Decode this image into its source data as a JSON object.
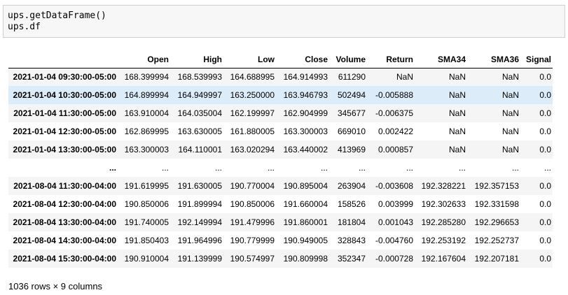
{
  "code": [
    "ups.getDataFrame()",
    "ups.df"
  ],
  "table": {
    "columns": [
      "",
      "Open",
      "High",
      "Low",
      "Close",
      "Volume",
      "Return",
      "SMA34",
      "SMA36",
      "Signal"
    ],
    "rows": [
      [
        "2021-01-04 09:30:00-05:00",
        "168.399994",
        "168.539993",
        "164.688995",
        "164.914993",
        "611290",
        "NaN",
        "NaN",
        "NaN",
        "0.0"
      ],
      [
        "2021-01-04 10:30:00-05:00",
        "164.899994",
        "164.949997",
        "163.250000",
        "163.946793",
        "502494",
        "-0.005888",
        "NaN",
        "NaN",
        "0.0"
      ],
      [
        "2021-01-04 11:30:00-05:00",
        "163.910004",
        "164.035004",
        "162.199997",
        "162.904999",
        "345677",
        "-0.006375",
        "NaN",
        "NaN",
        "0.0"
      ],
      [
        "2021-01-04 12:30:00-05:00",
        "162.869995",
        "163.630005",
        "161.880005",
        "163.300003",
        "669010",
        "0.002422",
        "NaN",
        "NaN",
        "0.0"
      ],
      [
        "2021-01-04 13:30:00-05:00",
        "163.300003",
        "164.110001",
        "163.020294",
        "163.440002",
        "413969",
        "0.000857",
        "NaN",
        "NaN",
        "0.0"
      ],
      [
        "...",
        "...",
        "...",
        "...",
        "...",
        "...",
        "...",
        "...",
        "...",
        "..."
      ],
      [
        "2021-08-04 11:30:00-04:00",
        "191.619995",
        "191.630005",
        "190.770004",
        "190.895004",
        "263904",
        "-0.003608",
        "192.328221",
        "192.357153",
        "0.0"
      ],
      [
        "2021-08-04 12:30:00-04:00",
        "190.850006",
        "191.899994",
        "190.850006",
        "191.660004",
        "158526",
        "0.003999",
        "192.302633",
        "192.331598",
        "0.0"
      ],
      [
        "2021-08-04 13:30:00-04:00",
        "191.740005",
        "192.149994",
        "191.479996",
        "191.860001",
        "181804",
        "0.001043",
        "192.285280",
        "192.296653",
        "0.0"
      ],
      [
        "2021-08-04 14:30:00-04:00",
        "191.850403",
        "191.964996",
        "190.779999",
        "190.949005",
        "328843",
        "-0.004760",
        "192.253192",
        "192.252737",
        "0.0"
      ],
      [
        "2021-08-04 15:30:00-04:00",
        "190.910004",
        "191.139999",
        "190.574997",
        "190.809998",
        "352347",
        "-0.000728",
        "192.167604",
        "192.207181",
        "0.0"
      ]
    ]
  },
  "footer": "1036 rows × 9 columns"
}
